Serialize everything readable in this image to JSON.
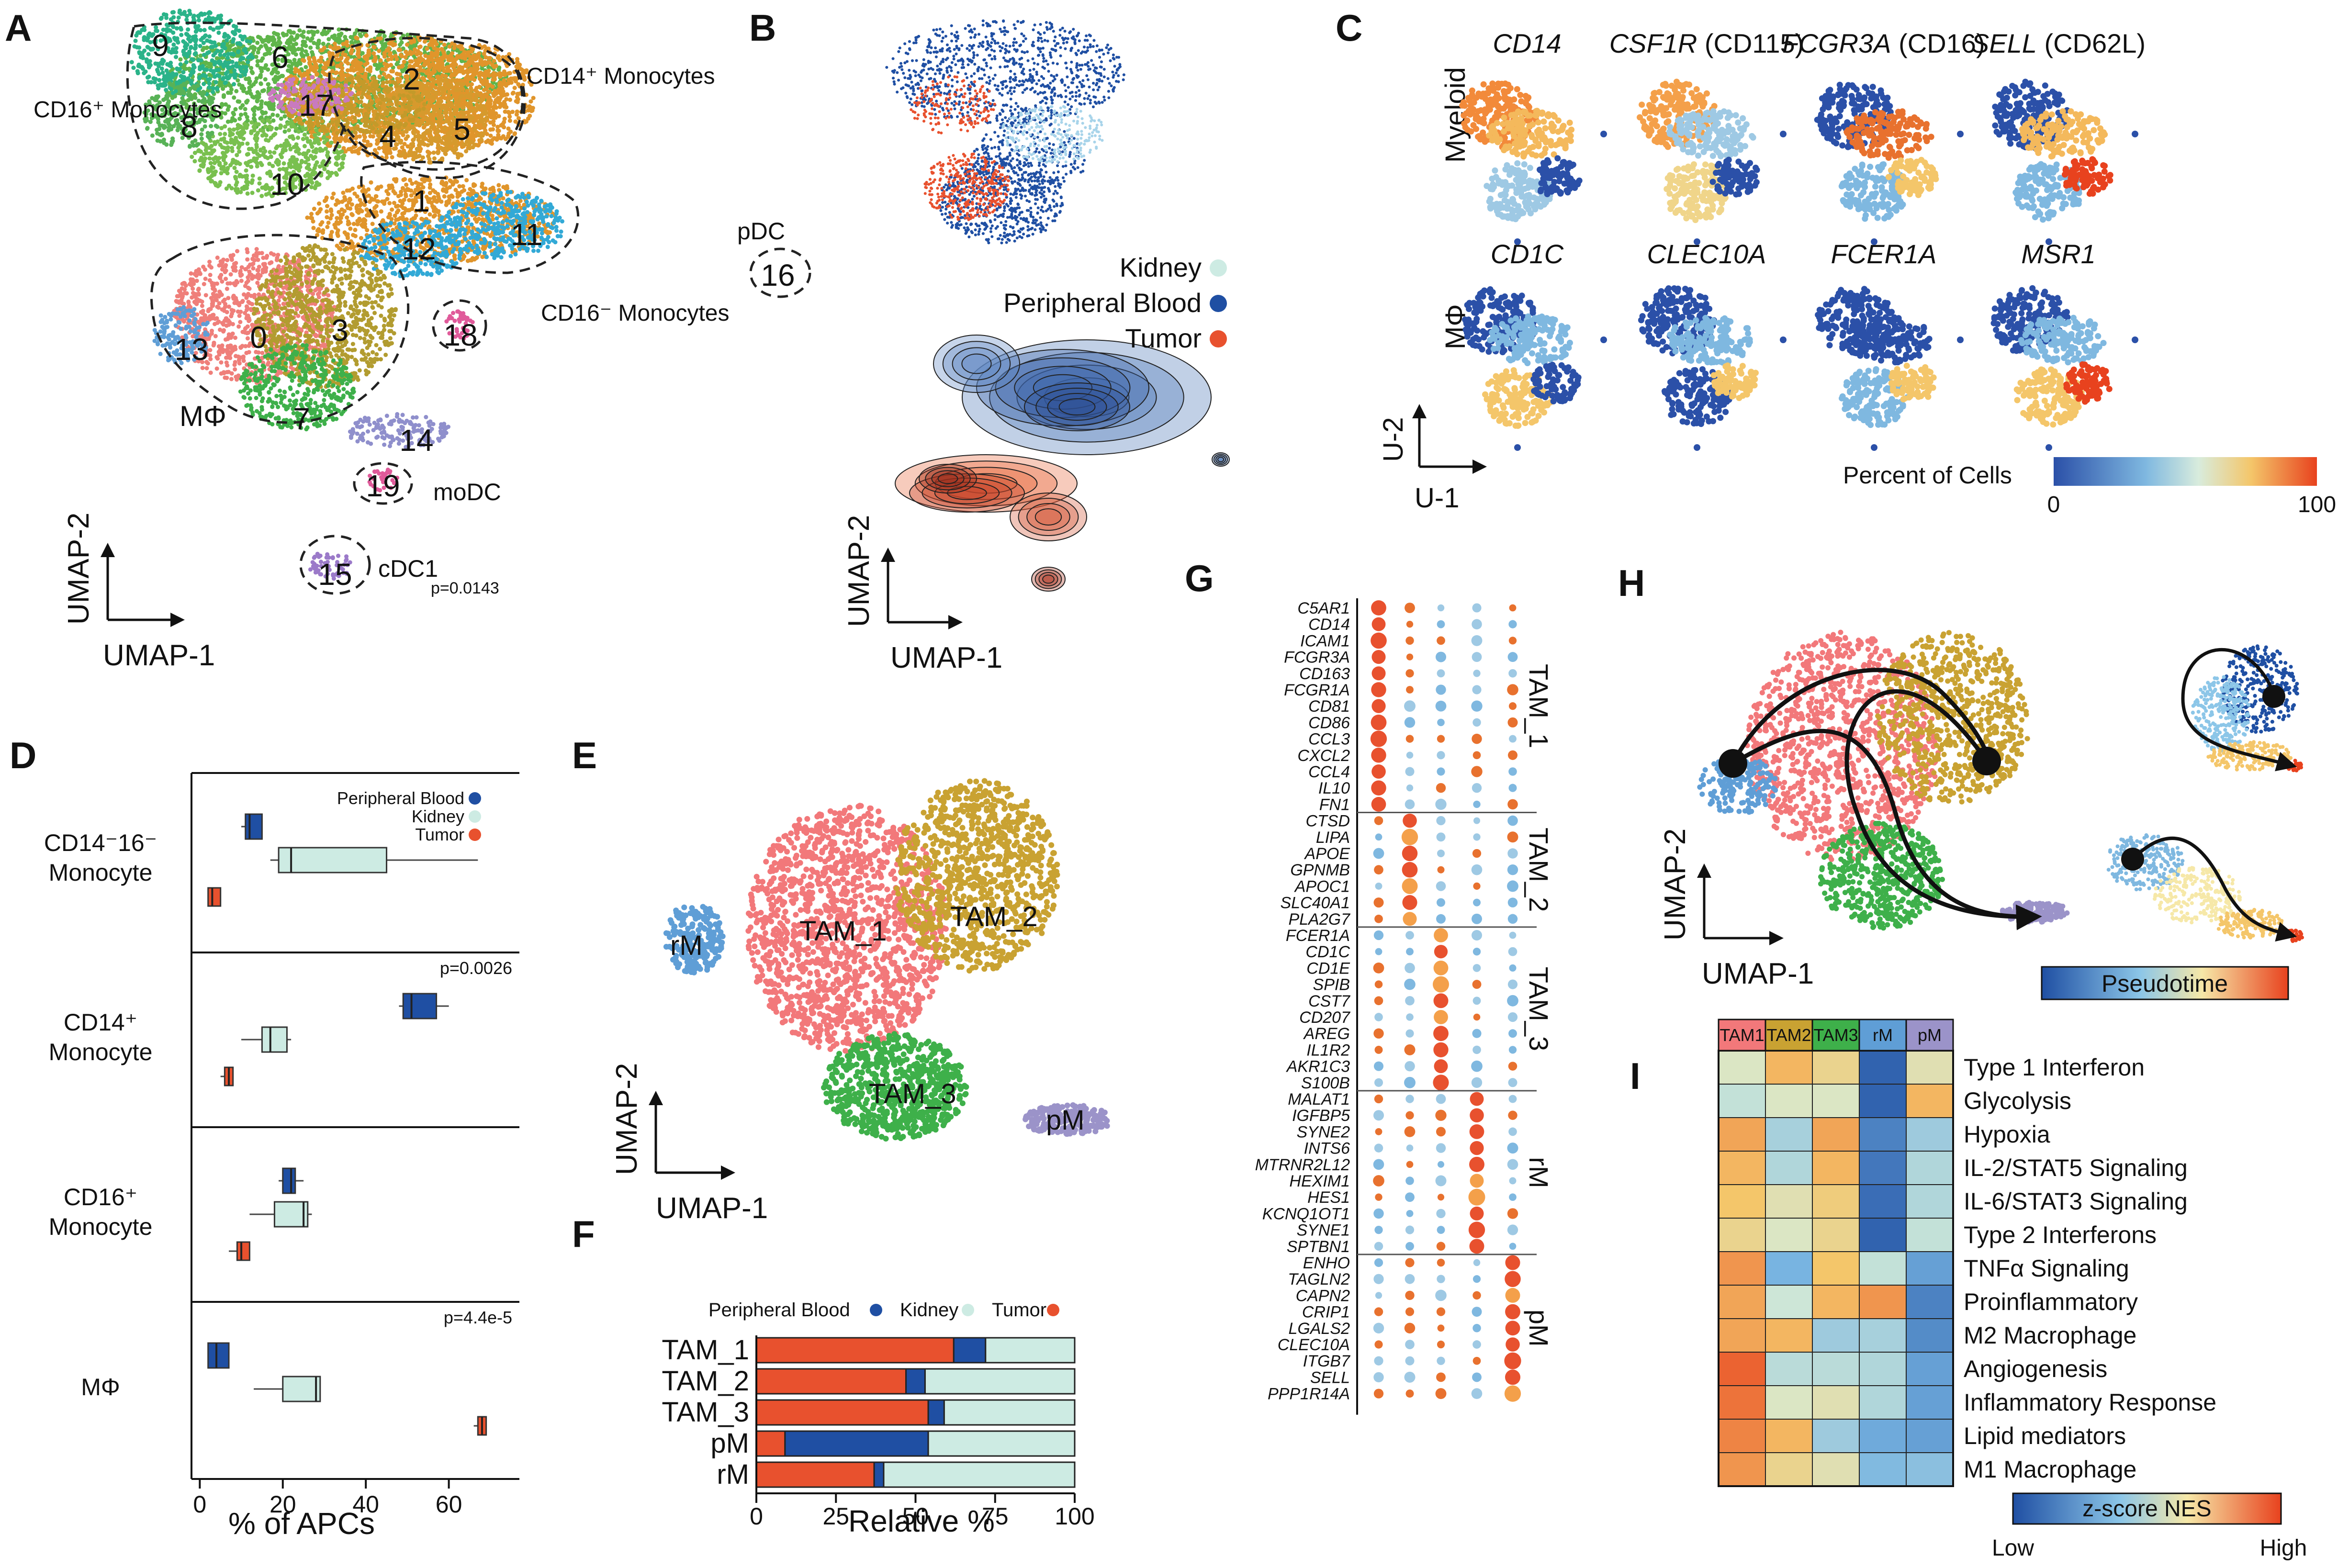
{
  "colors": {
    "peripheral_blood": "#1f4fa3",
    "kidney": "#cdebe3",
    "tumor": "#e8512e",
    "tam1": "#f2787a",
    "tam2": "#c9a232",
    "tam3": "#3eb04a",
    "rm": "#5f9ed6",
    "pm": "#9b93c9"
  },
  "panelA": {
    "label": "A",
    "groups": [
      "CD16⁺ Monocytes",
      "CD14⁺ Monocytes",
      "CD16⁻ Monocytes",
      "MΦ",
      "moDC",
      "cDC1",
      "pDC"
    ],
    "clusters": [
      "0",
      "1",
      "2",
      "3",
      "4",
      "5",
      "6",
      "7",
      "8",
      "9",
      "10",
      "11",
      "12",
      "13",
      "14",
      "15",
      "16",
      "17",
      "18",
      "19"
    ],
    "xlabel": "UMAP-1",
    "ylabel": "UMAP-2",
    "pvalue": "p=0.0143"
  },
  "panelB": {
    "label": "B",
    "legend": [
      "Kidney",
      "Peripheral Blood",
      "Tumor"
    ],
    "xlabel": "UMAP-1",
    "ylabel": "UMAP-2"
  },
  "panelC": {
    "label": "C",
    "rows": [
      "Myeloid",
      "MΦ"
    ],
    "genes_row1": [
      {
        "italic": "CD14",
        "plain": ""
      },
      {
        "italic": "CSF1R",
        "plain": " (CD115)"
      },
      {
        "italic": "FCGR3A",
        "plain": " (CD16)"
      },
      {
        "italic": "SELL",
        "plain": " (CD62L)"
      }
    ],
    "genes_row2": [
      {
        "italic": "CD1C",
        "plain": ""
      },
      {
        "italic": "CLEC10A",
        "plain": ""
      },
      {
        "italic": "FCER1A",
        "plain": ""
      },
      {
        "italic": "MSR1",
        "plain": ""
      }
    ],
    "xlabel": "U-1",
    "ylabel": "U-2",
    "colorbar_title": "Percent of Cells",
    "colorbar_min": "0",
    "colorbar_max": "100"
  },
  "panelD": {
    "label": "D",
    "legend": [
      "Peripheral Blood",
      "Kidney",
      "Tumor"
    ],
    "xlabel": "% of APCs",
    "xticks": [
      "0",
      "20",
      "40",
      "60"
    ],
    "facets": [
      {
        "name": "CD14⁻16⁻ Monocyte",
        "pvalue": ""
      },
      {
        "name": "CD14⁺ Monocyte",
        "pvalue": "p=0.0026"
      },
      {
        "name": "CD16⁺ Monocyte",
        "pvalue": ""
      },
      {
        "name": "MΦ",
        "pvalue": "p=4.4e-5"
      }
    ]
  },
  "panelE": {
    "label": "E",
    "clusters": [
      "TAM_1",
      "TAM_2",
      "TAM_3",
      "rM",
      "pM"
    ],
    "xlabel": "UMAP-1",
    "ylabel": "UMAP-2"
  },
  "panelF": {
    "label": "F",
    "legend": [
      "Peripheral Blood",
      "Kidney",
      "Tumor"
    ],
    "xlabel": "Relative %",
    "xticks": [
      "0",
      "25",
      "50",
      "75",
      "100"
    ]
  },
  "panelG": {
    "label": "G",
    "groups": [
      {
        "name": "TAM_1",
        "genes": [
          "C5AR1",
          "CD14",
          "ICAM1",
          "FCGR3A",
          "CD163",
          "FCGR1A",
          "CD81",
          "CD86",
          "CCL3",
          "CXCL2",
          "CCL4",
          "IL10",
          "FN1"
        ]
      },
      {
        "name": "TAM_2",
        "genes": [
          "CTSD",
          "LIPA",
          "APOE",
          "GPNMB",
          "APOC1",
          "SLC40A1",
          "PLA2G7"
        ]
      },
      {
        "name": "TAM_3",
        "genes": [
          "FCER1A",
          "CD1C",
          "CD1E",
          "SPIB",
          "CST7",
          "CD207",
          "AREG",
          "IL1R2",
          "AKR1C3",
          "S100B"
        ]
      },
      {
        "name": "rM",
        "genes": [
          "MALAT1",
          "IGFBP5",
          "SYNE2",
          "INTS6",
          "MTRNR2L12",
          "HEXIM1",
          "HES1",
          "KCNQ1OT1",
          "SYNE1",
          "SPTBN1"
        ]
      },
      {
        "name": "pM",
        "genes": [
          "ENHO",
          "TAGLN2",
          "CAPN2",
          "CRIP1",
          "LGALS2",
          "CLEC10A",
          "ITGB7",
          "SELL",
          "PPP1R14A"
        ]
      }
    ]
  },
  "panelH": {
    "label": "H",
    "xlabel": "UMAP-1",
    "ylabel": "UMAP-2",
    "colorbar_title": "Pseudotime"
  },
  "panelI": {
    "label": "I",
    "colorbar_title": "z-score NES",
    "colorbar_low": "Low",
    "colorbar_high": "High"
  },
  "chart_data": [
    {
      "type": "scatter",
      "panel": "D",
      "subtype": "boxplot",
      "xlabel": "% of APCs",
      "xlim": [
        -2,
        77
      ],
      "xticks": [
        0,
        20,
        40,
        60
      ],
      "legend_placement": "top-right",
      "series_names": [
        "Peripheral Blood",
        "Kidney",
        "Tumor"
      ],
      "facets": [
        {
          "name": "CD14⁻16⁻ Monocyte",
          "boxes": [
            {
              "series": "Peripheral Blood",
              "wlo": 10,
              "q1": 11,
              "med": 12,
              "q3": 15,
              "whi": 15
            },
            {
              "series": "Kidney",
              "wlo": 17,
              "q1": 19,
              "med": 22,
              "q3": 45,
              "whi": 67
            },
            {
              "series": "Tumor",
              "wlo": 2,
              "q1": 2,
              "med": 3,
              "q3": 5,
              "whi": 5
            }
          ]
        },
        {
          "name": "CD14⁺ Monocyte",
          "pvalue": "p=0.0026",
          "boxes": [
            {
              "series": "Peripheral Blood",
              "wlo": 48,
              "q1": 49,
              "med": 51,
              "q3": 57,
              "whi": 60
            },
            {
              "series": "Kidney",
              "wlo": 10,
              "q1": 15,
              "med": 17,
              "q3": 21,
              "whi": 22
            },
            {
              "series": "Tumor",
              "wlo": 5,
              "q1": 6,
              "med": 7,
              "q3": 8,
              "whi": 8
            }
          ]
        },
        {
          "name": "CD16⁺ Monocyte",
          "boxes": [
            {
              "series": "Peripheral Blood",
              "wlo": 19,
              "q1": 20,
              "med": 22,
              "q3": 23,
              "whi": 25
            },
            {
              "series": "Kidney",
              "wlo": 12,
              "q1": 18,
              "med": 25,
              "q3": 26,
              "whi": 27
            },
            {
              "series": "Tumor",
              "wlo": 7,
              "q1": 9,
              "med": 10,
              "q3": 12,
              "whi": 12
            }
          ]
        },
        {
          "name": "MΦ",
          "pvalue": "p=4.4e-5",
          "boxes": [
            {
              "series": "Peripheral Blood",
              "wlo": 2,
              "q1": 2,
              "med": 4,
              "q3": 7,
              "whi": 7
            },
            {
              "series": "Kidney",
              "wlo": 13,
              "q1": 20,
              "med": 28,
              "q3": 29,
              "whi": 29
            },
            {
              "series": "Tumor",
              "wlo": 66,
              "q1": 67,
              "med": 68,
              "q3": 69,
              "whi": 69
            }
          ]
        }
      ]
    },
    {
      "type": "bar",
      "panel": "F",
      "orientation": "horizontal",
      "stacked": true,
      "xlabel": "Relative %",
      "xlim": [
        0,
        100
      ],
      "xticks": [
        0,
        25,
        50,
        75,
        100
      ],
      "categories": [
        "TAM_1",
        "TAM_2",
        "TAM_3",
        "pM",
        "rM"
      ],
      "series": [
        {
          "name": "Tumor",
          "values": [
            62,
            47,
            54,
            9,
            37
          ]
        },
        {
          "name": "Peripheral Blood",
          "values": [
            10,
            6,
            5,
            45,
            3
          ]
        },
        {
          "name": "Kidney",
          "values": [
            28,
            47,
            41,
            46,
            60
          ]
        }
      ],
      "legend_placement": "top"
    },
    {
      "type": "heatmap",
      "panel": "I",
      "columns": [
        "TAM1",
        "TAM2",
        "TAM3",
        "rM",
        "pM"
      ],
      "rows": [
        "Type 1 Interferon",
        "Glycolysis",
        "Hypoxia",
        "IL-2/STAT5 Signaling",
        "IL-6/STAT3 Signaling",
        "Type 2 Interferons",
        "TNFα Signaling",
        "Proinflammatory",
        "M2 Macrophage",
        "Angiogenesis",
        "Inflammatory Response",
        "Lipid mediators",
        "M1 Macrophage"
      ],
      "values": [
        [
          0.1,
          0.7,
          0.4,
          -1.8,
          0.2
        ],
        [
          -0.2,
          0.1,
          0.1,
          -1.8,
          0.7
        ],
        [
          0.8,
          -0.5,
          0.8,
          -1.5,
          -0.6
        ],
        [
          0.7,
          -0.4,
          0.7,
          -1.6,
          -0.4
        ],
        [
          0.6,
          0.2,
          0.5,
          -1.7,
          -0.4
        ],
        [
          0.4,
          0.1,
          0.4,
          -1.8,
          -0.2
        ],
        [
          0.9,
          -1.0,
          0.6,
          -0.2,
          -1.2
        ],
        [
          0.8,
          -0.1,
          0.7,
          0.9,
          -1.5
        ],
        [
          0.8,
          0.7,
          -0.6,
          -0.5,
          -1.4
        ],
        [
          1.2,
          -0.3,
          -0.3,
          -0.4,
          -1.2
        ],
        [
          1.1,
          0.1,
          0.2,
          -0.4,
          -1.2
        ],
        [
          1.0,
          0.7,
          -0.6,
          -1.1,
          -1.2
        ],
        [
          0.9,
          0.4,
          0.2,
          -0.9,
          -0.8
        ]
      ],
      "colorbar": "z-score NES"
    },
    {
      "type": "scatter",
      "panel": "G",
      "subtype": "dotplot",
      "columns": [
        "TAM_1",
        "TAM_2",
        "TAM_3",
        "rM",
        "pM"
      ]
    }
  ]
}
